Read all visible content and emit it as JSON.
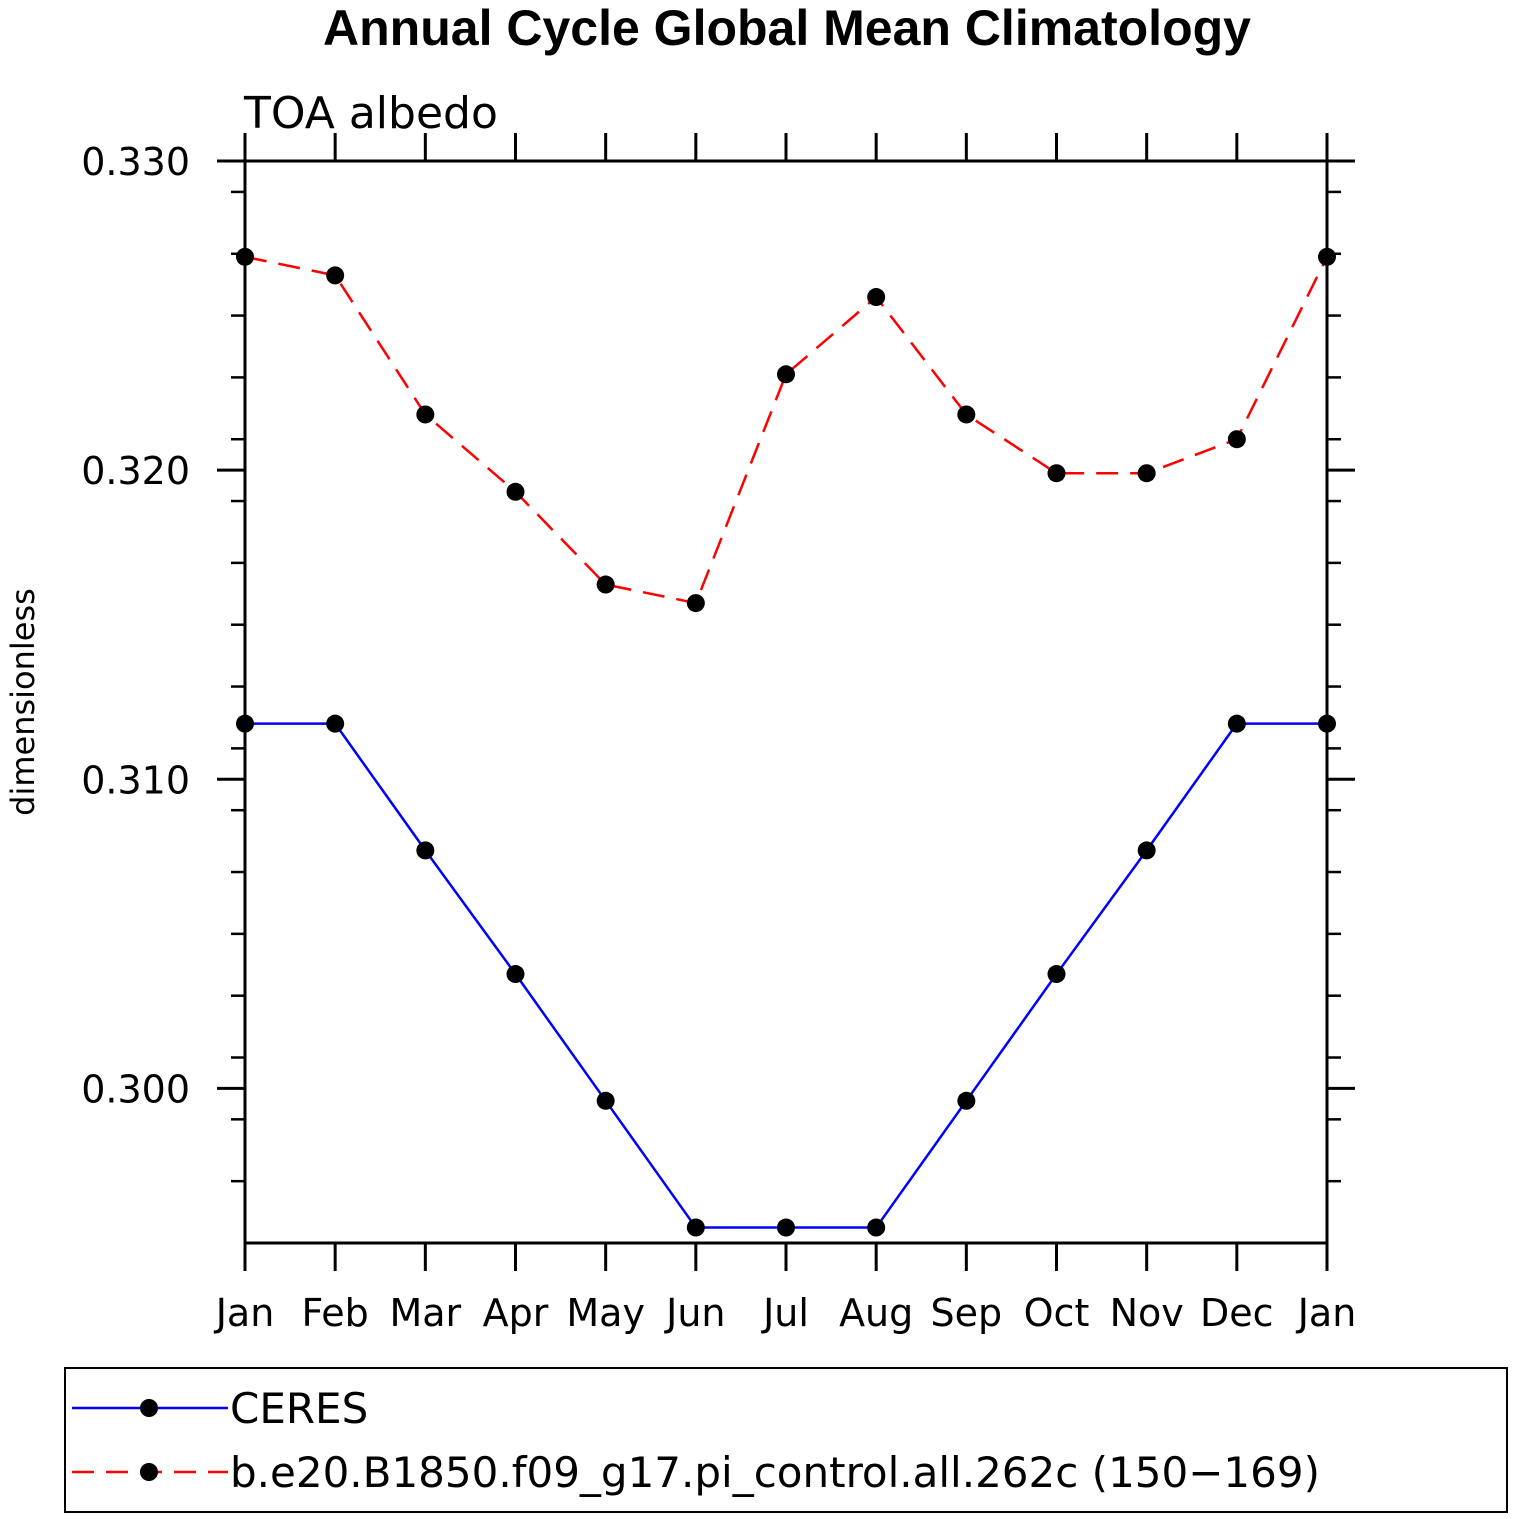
{
  "chart_data": {
    "type": "line",
    "title": "Annual Cycle Global Mean Climatology",
    "subtitle": "TOA albedo",
    "xlabel": "",
    "ylabel": "dimensionless",
    "categories": [
      "Jan",
      "Feb",
      "Mar",
      "Apr",
      "May",
      "Jun",
      "Jul",
      "Aug",
      "Sep",
      "Oct",
      "Nov",
      "Dec",
      "Jan"
    ],
    "ylim": [
      0.295,
      0.33
    ],
    "yticks": [
      {
        "value": 0.3,
        "label": "0.300"
      },
      {
        "value": 0.31,
        "label": "0.310"
      },
      {
        "value": 0.32,
        "label": "0.320"
      },
      {
        "value": 0.33,
        "label": "0.330"
      }
    ],
    "yminor_step": 0.002,
    "grid": false,
    "legend_position": "bottom",
    "series": [
      {
        "name": "CERES",
        "color": "#0000ff",
        "dash": "solid",
        "values": [
          0.3118,
          0.3118,
          0.3077,
          0.3037,
          0.2996,
          0.2955,
          0.2955,
          0.2955,
          0.2996,
          0.3037,
          0.3077,
          0.3118,
          0.3118
        ]
      },
      {
        "name": "b.e20.B1850.f09_g17.pi_control.all.262c (150−169)",
        "color": "#ff0000",
        "dash": "dashed",
        "values": [
          0.3269,
          0.3263,
          0.3218,
          0.3193,
          0.3163,
          0.3157,
          0.3231,
          0.3256,
          0.3218,
          0.3199,
          0.3199,
          0.321,
          0.3269
        ]
      }
    ]
  }
}
